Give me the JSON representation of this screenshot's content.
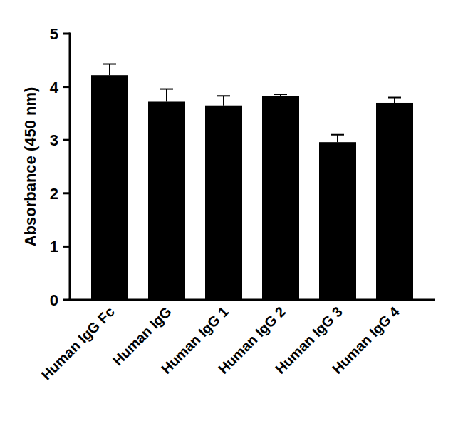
{
  "chart_data": {
    "type": "bar",
    "y_label": "Absorbance (450 nm)",
    "categories": [
      "Human IgG Fc",
      "Human IgG",
      "Human IgG 1",
      "Human IgG 2",
      "Human IgG 3",
      "Human IgG 4"
    ],
    "values": [
      4.22,
      3.72,
      3.65,
      3.83,
      2.96,
      3.7
    ],
    "errors": [
      0.21,
      0.24,
      0.18,
      0.03,
      0.14,
      0.1
    ],
    "color": "#000000",
    "ylim": [
      0,
      5
    ],
    "yticks": [
      0,
      1,
      2,
      3,
      4,
      5
    ],
    "grid": false
  }
}
